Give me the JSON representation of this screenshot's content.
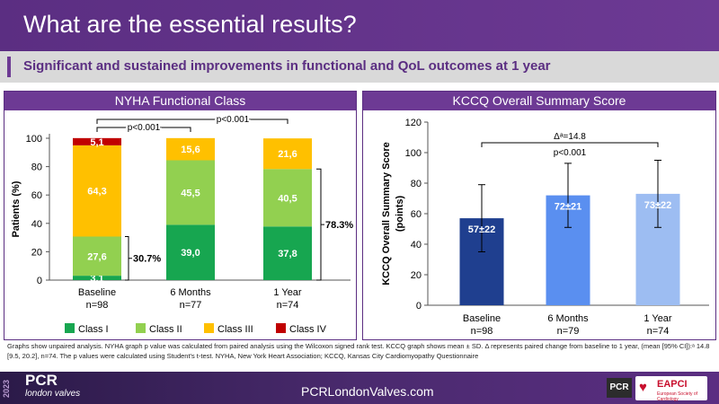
{
  "header": {
    "title": "What are the essential results?"
  },
  "subtitle": "Significant and sustained improvements in functional and QoL outcomes at 1 year",
  "footnote": "Graphs show unpaired analysis. NYHA graph p value was calculated from paired analysis using the Wilcoxon signed rank test. KCCQ graph shows mean ± SD. Δ represents paired change from baseline to 1 year, (mean [95% CI]):ᵃ 14.8 [9.5, 20.2], n=74. The p values were calculated using Student's t-test. NYHA, New York Heart Association; KCCQ, Kansas City Cardiomyopathy Questionnaire",
  "footer": {
    "year": "2023",
    "logo": "PCR",
    "logo_sub": "london valves",
    "website": "PCRLondonValves.com",
    "pcr_badge": "PCR",
    "eapci": "EAPCI",
    "eapci_tag": "European Society of Cardiology"
  },
  "colors": {
    "purple": "#6d3a94",
    "class1": "#17a650",
    "class2": "#92d050",
    "class3": "#ffc000",
    "class4": "#c00000",
    "kccq_baseline": "#1f3f8f",
    "kccq_6m": "#5a8ff0",
    "kccq_1y": "#9dbdf2"
  },
  "chart_data": [
    {
      "type": "bar",
      "stacked": true,
      "title": "NYHA Functional Class",
      "ylabel": "Patients (%)",
      "ylim": [
        0,
        100
      ],
      "yticks": [
        0,
        20,
        40,
        60,
        80,
        100
      ],
      "categories": [
        "Baseline",
        "6 Months",
        "1 Year"
      ],
      "n_labels": [
        "n=98",
        "n=77",
        "n=74"
      ],
      "series": [
        {
          "name": "Class I",
          "values": [
            3.1,
            39.0,
            37.8
          ],
          "labels": [
            "3,1",
            "39,0",
            "37,8"
          ]
        },
        {
          "name": "Class II",
          "values": [
            27.6,
            45.5,
            40.5
          ],
          "labels": [
            "27,6",
            "45,5",
            "40,5"
          ]
        },
        {
          "name": "Class III",
          "values": [
            64.3,
            15.6,
            21.6
          ],
          "labels": [
            "64,3",
            "15,6",
            "21,6"
          ]
        },
        {
          "name": "Class IV",
          "values": [
            5.1,
            0,
            0
          ],
          "labels": [
            "5,1",
            "",
            ""
          ]
        }
      ],
      "annotations": {
        "baseline_bracket": "30.7%",
        "oneyear_bracket": "78.3%",
        "p1": "p<0.001",
        "p2": "p<0.001"
      },
      "legend": [
        "Class I",
        "Class II",
        "Class III",
        "Class IV"
      ]
    },
    {
      "type": "bar",
      "title": "KCCQ Overall Summary Score",
      "ylabel": "KCCQ Overall Summary Score (points)",
      "ylim": [
        0,
        120
      ],
      "yticks": [
        0,
        20,
        40,
        60,
        80,
        100,
        120
      ],
      "categories": [
        "Baseline",
        "6 Months",
        "1 Year"
      ],
      "n_labels": [
        "n=98",
        "n=79",
        "n=74"
      ],
      "values": [
        57,
        72,
        73
      ],
      "sd": [
        22,
        21,
        22
      ],
      "labels": [
        "57±22",
        "72±21",
        "73±22"
      ],
      "annotation_delta": "Δᵃ=14.8",
      "annotation_p": "p<0.001"
    }
  ]
}
